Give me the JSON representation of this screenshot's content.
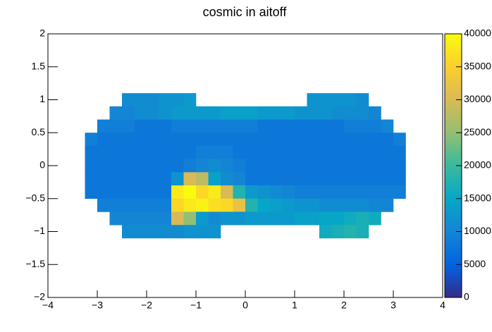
{
  "chart_data": {
    "type": "heatmap",
    "title": "cosmic in aitoff",
    "x": [
      -3.125,
      -2.875,
      -2.625,
      -2.375,
      -2.125,
      -1.875,
      -1.625,
      -1.375,
      -1.125,
      -0.875,
      -0.625,
      -0.375,
      -0.125,
      0.125,
      0.375,
      0.625,
      0.875,
      1.125,
      1.375,
      1.625,
      1.875,
      2.125,
      2.375,
      2.625,
      2.875,
      3.125
    ],
    "y": [
      1.0,
      0.8,
      0.6,
      0.4,
      0.2,
      0,
      -0.2,
      -0.4,
      -0.6,
      -0.8,
      -1.0
    ],
    "z": [
      [
        null,
        null,
        null,
        11000,
        11000,
        11000,
        12000,
        12000,
        13000,
        null,
        null,
        null,
        null,
        null,
        null,
        null,
        null,
        null,
        12000,
        12000,
        12000,
        12000,
        11000,
        null,
        null,
        null
      ],
      [
        null,
        null,
        10000,
        10000,
        11000,
        11000,
        12000,
        13000,
        13000,
        13000,
        13000,
        14000,
        14000,
        14000,
        13000,
        13000,
        13000,
        12000,
        12000,
        12000,
        11000,
        11000,
        11000,
        10000,
        null,
        null
      ],
      [
        null,
        9000,
        9000,
        9000,
        8000,
        8000,
        8000,
        9000,
        9000,
        9000,
        9000,
        9000,
        9000,
        9000,
        8000,
        8000,
        8000,
        8000,
        8000,
        8000,
        8000,
        9000,
        9000,
        9000,
        10000,
        null
      ],
      [
        9000,
        8000,
        8000,
        8000,
        8000,
        8000,
        8000,
        8000,
        8000,
        8000,
        8000,
        8000,
        8000,
        8000,
        8000,
        8000,
        8000,
        8000,
        8000,
        8000,
        8000,
        8000,
        8000,
        8000,
        8000,
        9000
      ],
      [
        8000,
        8000,
        8000,
        8000,
        8000,
        8000,
        8000,
        8000,
        8000,
        9000,
        9000,
        9000,
        8000,
        8000,
        8000,
        8000,
        8000,
        8000,
        8000,
        8000,
        8000,
        8000,
        8000,
        8000,
        8000,
        8000
      ],
      [
        8000,
        8000,
        8000,
        8000,
        8000,
        8000,
        8000,
        8000,
        9000,
        10000,
        11000,
        10000,
        9000,
        8000,
        8000,
        8000,
        8000,
        8000,
        8000,
        8000,
        8000,
        8000,
        8000,
        8000,
        8000,
        8000
      ],
      [
        8000,
        8000,
        8000,
        8000,
        8000,
        8000,
        8000,
        12000,
        30000,
        28000,
        14000,
        11000,
        10000,
        8000,
        8000,
        8000,
        8000,
        8000,
        8000,
        8000,
        8000,
        8000,
        8000,
        8000,
        8000,
        8000
      ],
      [
        8000,
        8000,
        8000,
        8000,
        8000,
        8000,
        8000,
        38000,
        40000,
        36000,
        38000,
        30000,
        18000,
        13000,
        12000,
        11000,
        10000,
        9000,
        9000,
        9000,
        9000,
        9000,
        9000,
        9000,
        9000,
        9000
      ],
      [
        null,
        9000,
        9000,
        9000,
        9000,
        9000,
        9000,
        36000,
        38000,
        39000,
        37000,
        36000,
        32000,
        18000,
        15000,
        14000,
        13000,
        12000,
        12000,
        11000,
        11000,
        11000,
        11000,
        10000,
        10000,
        null
      ],
      [
        null,
        null,
        10000,
        10000,
        10000,
        10000,
        10000,
        30000,
        25000,
        13000,
        11000,
        12000,
        12000,
        13000,
        13000,
        13000,
        13000,
        14000,
        14000,
        15000,
        15000,
        16000,
        17000,
        16000,
        null,
        null
      ],
      [
        null,
        null,
        null,
        11000,
        11000,
        11000,
        11000,
        11000,
        12000,
        12000,
        12000,
        null,
        null,
        null,
        null,
        null,
        null,
        null,
        null,
        16000,
        17000,
        18000,
        17000,
        null,
        null,
        null
      ]
    ],
    "xlim": [
      -4,
      4
    ],
    "xticks": [
      {
        "value": -4,
        "label": "−4"
      },
      {
        "value": -3,
        "label": "−3"
      },
      {
        "value": -2,
        "label": "−2"
      },
      {
        "value": -1,
        "label": "−1"
      },
      0,
      1,
      2,
      3,
      4
    ],
    "ylim": [
      -2,
      2
    ],
    "yticks": [
      {
        "value": -2,
        "label": "−2"
      },
      {
        "value": -1.5,
        "label": "−1.5"
      },
      {
        "value": -1,
        "label": "−1"
      },
      {
        "value": -0.5,
        "label": "−0.5"
      },
      0,
      0.5,
      1,
      1.5,
      2
    ],
    "zlim": [
      0,
      40000
    ],
    "zticks": [
      0,
      5000,
      10000,
      15000,
      20000,
      25000,
      30000,
      35000,
      40000
    ],
    "colorscale": [
      "#352a87",
      "#0363e1",
      "#1485d4",
      "#06a7c6",
      "#38b99e",
      "#92bf73",
      "#d9ba56",
      "#fcce2e",
      "#f9fb0e"
    ]
  }
}
